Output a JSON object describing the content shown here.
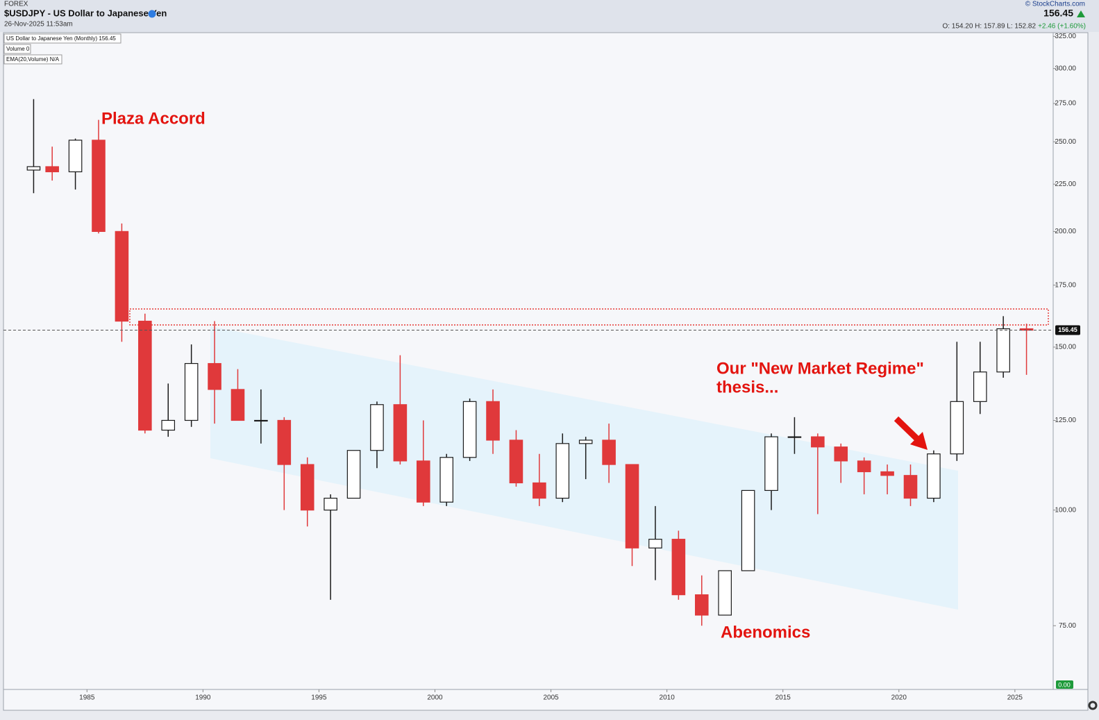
{
  "header": {
    "market": "FOREX",
    "symbol": "$USDJPY - US Dollar to Japanese Yen",
    "date": "26-Nov-2025 11:53am",
    "copyright": "© StockCharts.com",
    "last": "156.45",
    "ohlc": "O: 154.20   H: 157.89   L: 152.82",
    "change": "+2.46 (+1.60%)",
    "legend": [
      "US Dollar to Japanese Yen (Monthly) 156.45",
      "Volume 0",
      "EMA(20,Volume) N/A"
    ],
    "volume_tag": "0.00"
  },
  "chart_data": {
    "type": "candlestick",
    "x": [
      1982.7,
      1983.5,
      1984.5,
      1985.5,
      1986.5,
      1987.5,
      1988.5,
      1989.5,
      1990.5,
      1991.5,
      1992.5,
      1993.5,
      1994.5,
      1995.5,
      1996.5,
      1997.5,
      1998.5,
      1999.5,
      2000.5,
      2001.5,
      2002.5,
      2003.5,
      2004.5,
      2005.5,
      2006.5,
      2007.5,
      2008.5,
      2009.5,
      2010.5,
      2011.5,
      2012.5,
      2013.5,
      2014.5,
      2015.5,
      2016.5,
      2017.5,
      2018.5,
      2019.5,
      2020.5,
      2021.5,
      2022.5,
      2023.5,
      2024.5,
      2025.5
    ],
    "open": [
      233,
      235,
      232,
      251,
      200,
      160,
      122,
      125,
      144,
      135,
      125,
      125,
      112,
      100,
      103,
      116,
      130,
      113,
      102,
      114,
      131,
      119,
      107,
      103,
      118,
      119,
      112,
      91,
      93,
      81,
      77,
      86,
      105,
      120,
      120,
      117,
      113,
      110,
      109,
      103,
      115,
      131,
      141,
      157
    ],
    "high": [
      278,
      247,
      252,
      264,
      204,
      163,
      137,
      151,
      160,
      142,
      135,
      126,
      114,
      104,
      116,
      131,
      147,
      125,
      115,
      132,
      135,
      122,
      115,
      121,
      120,
      124,
      112,
      101,
      95,
      85,
      86,
      105,
      121,
      126,
      121,
      118,
      114,
      112,
      112,
      116,
      152,
      152,
      162,
      159
    ],
    "low": [
      220,
      227,
      222,
      199,
      152,
      121,
      120,
      123,
      124,
      125,
      118,
      100,
      96,
      80,
      103,
      111,
      112,
      101,
      101,
      113,
      115,
      106,
      101,
      102,
      108,
      107,
      87,
      84,
      80,
      75,
      77,
      86,
      100,
      115,
      99,
      107,
      104,
      104,
      101,
      102,
      113,
      127,
      139,
      140
    ],
    "close": [
      235,
      232,
      251,
      200,
      160,
      122,
      125,
      144,
      135,
      125,
      125,
      112,
      100,
      103,
      116,
      130,
      113,
      102,
      114,
      131,
      119,
      107,
      103,
      118,
      119,
      112,
      91,
      93,
      81,
      77,
      86,
      105,
      120,
      120,
      117,
      113,
      110,
      109,
      103,
      115,
      131,
      141,
      157,
      156.45
    ],
    "up_color": "#1a1a1a",
    "down_color": "#e0393b",
    "xlim": [
      1981.4,
      2026.65
    ],
    "xticks": [
      1985,
      1990,
      1995,
      2000,
      2005,
      2010,
      2015,
      2020,
      2025
    ],
    "ylim": [
      64,
      328
    ],
    "log_scale": true,
    "yticks": [
      {
        "value": 75,
        "label": "75.00"
      },
      {
        "value": 100,
        "label": "100.00"
      },
      {
        "value": 125,
        "label": "125.00"
      },
      {
        "value": 150,
        "label": "150.00"
      },
      {
        "value": 175,
        "label": "175.00"
      },
      {
        "value": 200,
        "label": "200.00"
      },
      {
        "value": 225,
        "label": "225.00"
      },
      {
        "value": 250,
        "label": "250.00"
      },
      {
        "value": 275,
        "label": "275.00"
      },
      {
        "value": 300,
        "label": "300.00"
      },
      {
        "value": 325,
        "label": "325.00"
      }
    ],
    "annotations": [
      "Plaza Accord",
      "Our \"New Market Regime\"",
      "thesis...",
      "Abenomics"
    ]
  }
}
